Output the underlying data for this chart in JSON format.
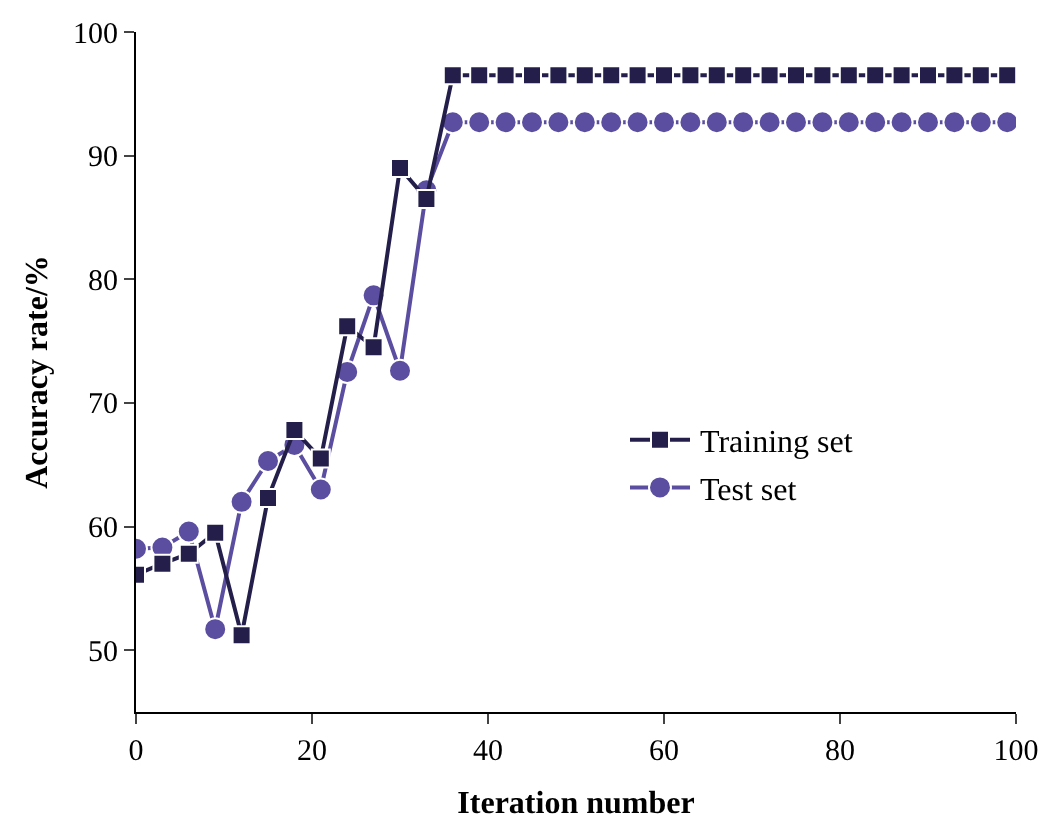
{
  "chart_data": {
    "type": "line",
    "xlabel": "Iteration number",
    "ylabel": "Accuracy rate/%",
    "x": [
      0,
      3,
      6,
      9,
      12,
      15,
      18,
      21,
      24,
      27,
      30,
      33,
      36,
      39,
      42,
      45,
      48,
      51,
      54,
      57,
      60,
      63,
      66,
      69,
      72,
      75,
      78,
      81,
      84,
      87,
      90,
      93,
      96,
      99
    ],
    "series": [
      {
        "name": "Training set",
        "color": "#231f4a",
        "marker": "square",
        "values": [
          56.1,
          57,
          57.8,
          59.5,
          51.2,
          62.3,
          67.8,
          65.5,
          76.2,
          74.5,
          89,
          86.5,
          96.5,
          96.5,
          96.5,
          96.5,
          96.5,
          96.5,
          96.5,
          96.5,
          96.5,
          96.5,
          96.5,
          96.5,
          96.5,
          96.5,
          96.5,
          96.5,
          96.5,
          96.5,
          96.5,
          96.5,
          96.5,
          96.5
        ]
      },
      {
        "name": "Test set",
        "color": "#5b4ea0",
        "marker": "circle",
        "values": [
          58.2,
          58.3,
          59.6,
          51.7,
          62,
          65.3,
          66.6,
          63,
          72.5,
          78.7,
          72.6,
          87.2,
          92.7,
          92.7,
          92.7,
          92.7,
          92.7,
          92.7,
          92.7,
          92.7,
          92.7,
          92.7,
          92.7,
          92.7,
          92.7,
          92.7,
          92.7,
          92.7,
          92.7,
          92.7,
          92.7,
          92.7,
          92.7,
          92.7
        ]
      }
    ],
    "xlim": [
      0,
      100
    ],
    "xticks": [
      0,
      20,
      40,
      60,
      80,
      100
    ],
    "ylim": [
      45,
      100
    ],
    "yticks": [
      50,
      60,
      70,
      80,
      90,
      100
    ],
    "grid": false,
    "legend": "right",
    "line_style": "solid"
  }
}
